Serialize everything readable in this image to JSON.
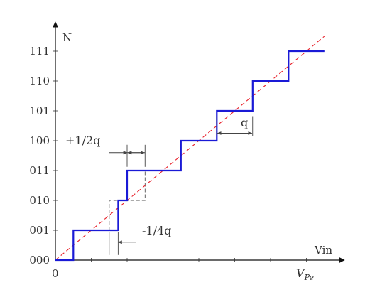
{
  "chart_data": {
    "type": "line",
    "title": "",
    "xlabel": "Vin",
    "ylabel": "N",
    "x_origin_label": "0",
    "x_end_label": "V",
    "x_end_label_sub": "Pe",
    "x_unit": "q",
    "xlim": [
      0,
      8
    ],
    "ylim": [
      0,
      7.8
    ],
    "x_minor_ticks": [
      1,
      2,
      3,
      4,
      5,
      6,
      7
    ],
    "y_ticks": [
      {
        "value": 0,
        "label": "000"
      },
      {
        "value": 1,
        "label": "001"
      },
      {
        "value": 2,
        "label": "010"
      },
      {
        "value": 3,
        "label": "011"
      },
      {
        "value": 4,
        "label": "100"
      },
      {
        "value": 5,
        "label": "101"
      },
      {
        "value": 6,
        "label": "110"
      },
      {
        "value": 7,
        "label": "111"
      }
    ],
    "series": [
      {
        "style": "solid",
        "color": "#1a1ad6",
        "points": [
          [
            0,
            0
          ],
          [
            0.5,
            0
          ],
          [
            0.5,
            1
          ],
          [
            1.75,
            1
          ],
          [
            1.75,
            2
          ],
          [
            2,
            2
          ],
          [
            2,
            3
          ],
          [
            3.5,
            3
          ],
          [
            3.5,
            4
          ],
          [
            4.5,
            4
          ],
          [
            4.5,
            5
          ],
          [
            5.5,
            5
          ],
          [
            5.5,
            6
          ],
          [
            6.5,
            6
          ],
          [
            6.5,
            7
          ],
          [
            7.5,
            7
          ]
        ]
      },
      {
        "style": "dashed",
        "color": "#e8202a",
        "points": [
          [
            0,
            0
          ],
          [
            7.5,
            7.5
          ]
        ]
      },
      {
        "style": "dashed",
        "color": "#555555",
        "points": [
          [
            1.5,
            1
          ],
          [
            1.5,
            2
          ],
          [
            2.5,
            2
          ],
          [
            2.5,
            3
          ]
        ]
      }
    ],
    "annotations": [
      {
        "text": "+1/2q",
        "bars_x": [
          2,
          2.5
        ],
        "arrows_at_y": 3.6,
        "outward_arrow_from_x": 1.5
      },
      {
        "text": "-1/4q",
        "bars_x": [
          1.5,
          1.75
        ],
        "arrows_at_y": 0.6,
        "outward_arrow_from_x": 2.25
      },
      {
        "text": "q",
        "bars_x": [
          4.5,
          5.5
        ],
        "arrows_at_y": 4.25
      }
    ]
  },
  "colors": {
    "axis": "#111111",
    "quantizer": "#1a1ad6",
    "ideal": "#e8202a",
    "annotation": "#444444"
  }
}
